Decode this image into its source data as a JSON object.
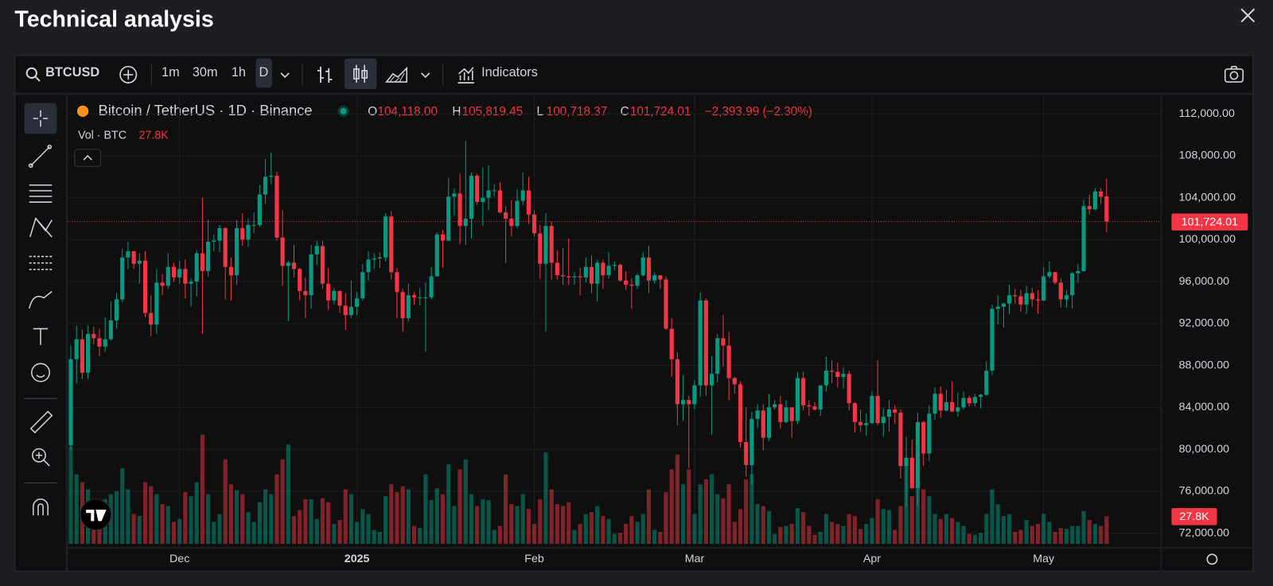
{
  "header": {
    "title": "Technical analysis"
  },
  "toolbar": {
    "symbol": "BTCUSD",
    "intervals": [
      "1m",
      "30m",
      "1h",
      "D"
    ],
    "indicators": "Indicators"
  },
  "chart_data": {
    "type": "candlestick",
    "title": "Bitcoin / TetherUS · 1D · Binance",
    "volume_title": "Vol · BTC",
    "ohlc_keys": [
      "O",
      "H",
      "L",
      "C"
    ],
    "last_labels": {
      "open": "104,118.00",
      "high": "105,819.45",
      "low": "100,718.37",
      "close": "101,724.01",
      "change": "−2,393.99 (−2.30%)"
    },
    "volume_label": "27.8K",
    "up_color": "#089981",
    "down_color": "#f23645",
    "grid": true,
    "ylim": [
      70600,
      113800
    ],
    "yticks": [
      {
        "value": 72000,
        "label": "72,000.00"
      },
      {
        "value": 76000,
        "label": "76,000.00"
      },
      {
        "value": 80000,
        "label": "80,000.00"
      },
      {
        "value": 84000,
        "label": "84,000.00"
      },
      {
        "value": 88000,
        "label": "88,000.00"
      },
      {
        "value": 92000,
        "label": "92,000.00"
      },
      {
        "value": 96000,
        "label": "96,000.00"
      },
      {
        "value": 100000,
        "label": "100,000.00"
      },
      {
        "value": 104000,
        "label": "104,000.00"
      },
      {
        "value": 108000,
        "label": "108,000.00"
      },
      {
        "value": 112000,
        "label": "112,000.00"
      }
    ],
    "xlim": [
      -0.6,
      190.5
    ],
    "xticks": [
      {
        "value": 19,
        "label": "Dec"
      },
      {
        "value": 50,
        "label": "2025"
      },
      {
        "value": 81,
        "label": "Feb"
      },
      {
        "value": 109,
        "label": "Mar"
      },
      {
        "value": 140,
        "label": "Apr"
      },
      {
        "value": 170,
        "label": "May"
      }
    ],
    "vlim": [
      0,
      114500
    ],
    "candles": [
      [
        80400,
        89900,
        80000,
        88600,
        98000
      ],
      [
        88600,
        91800,
        86300,
        90500,
        70000
      ],
      [
        90500,
        91400,
        86700,
        87300,
        62000
      ],
      [
        87300,
        91800,
        86700,
        91000,
        55000
      ],
      [
        91000,
        91700,
        90000,
        90600,
        30000
      ],
      [
        90600,
        91500,
        88900,
        89800,
        32000
      ],
      [
        89800,
        92600,
        89300,
        90500,
        45000
      ],
      [
        90500,
        94100,
        90400,
        92300,
        50000
      ],
      [
        92300,
        94900,
        91500,
        94300,
        53000
      ],
      [
        94300,
        99100,
        94000,
        98300,
        76000
      ],
      [
        98300,
        99800,
        97200,
        98900,
        55000
      ],
      [
        98900,
        98900,
        97200,
        97700,
        30000
      ],
      [
        97700,
        98700,
        95800,
        98000,
        28000
      ],
      [
        98000,
        98900,
        92600,
        93000,
        62000
      ],
      [
        93000,
        94700,
        90800,
        91900,
        58000
      ],
      [
        91900,
        97200,
        91000,
        95900,
        50000
      ],
      [
        95900,
        96700,
        94700,
        95600,
        40000
      ],
      [
        95600,
        98700,
        95300,
        97400,
        38000
      ],
      [
        97400,
        97800,
        96000,
        96400,
        22000
      ],
      [
        96400,
        98000,
        95800,
        97200,
        25000
      ],
      [
        97200,
        98100,
        94400,
        95800,
        52000
      ],
      [
        95800,
        96300,
        93600,
        96000,
        48000
      ],
      [
        96000,
        99000,
        94600,
        98700,
        62000
      ],
      [
        98700,
        104000,
        91000,
        97000,
        110000
      ],
      [
        97000,
        101900,
        96500,
        99800,
        50000
      ],
      [
        99800,
        100500,
        98900,
        99900,
        22000
      ],
      [
        99900,
        101400,
        98800,
        101100,
        30000
      ],
      [
        101100,
        101200,
        94300,
        97400,
        85000
      ],
      [
        97400,
        98300,
        94200,
        96600,
        60000
      ],
      [
        96600,
        101900,
        95700,
        101100,
        54000
      ],
      [
        101100,
        102500,
        99400,
        100000,
        50000
      ],
      [
        100000,
        102000,
        99300,
        101400,
        32000
      ],
      [
        101400,
        102600,
        100600,
        101400,
        22000
      ],
      [
        101400,
        105200,
        101200,
        104300,
        42000
      ],
      [
        104300,
        107700,
        103400,
        106000,
        55000
      ],
      [
        106000,
        108300,
        105300,
        106100,
        50000
      ],
      [
        106100,
        106500,
        99900,
        100200,
        70000
      ],
      [
        100200,
        102800,
        95600,
        97500,
        85000
      ],
      [
        97500,
        98000,
        92200,
        97800,
        100000
      ],
      [
        97800,
        99500,
        96400,
        97200,
        28000
      ],
      [
        97200,
        97300,
        94200,
        95100,
        34000
      ],
      [
        95100,
        96400,
        92500,
        94700,
        45000
      ],
      [
        94700,
        99500,
        93400,
        98600,
        45000
      ],
      [
        98600,
        99900,
        97600,
        99400,
        25000
      ],
      [
        99400,
        99900,
        95300,
        95800,
        46000
      ],
      [
        95800,
        97300,
        93300,
        94200,
        42000
      ],
      [
        94200,
        95400,
        93800,
        95100,
        20000
      ],
      [
        95100,
        95200,
        93000,
        93700,
        24000
      ],
      [
        93700,
        94900,
        91400,
        92800,
        55000
      ],
      [
        92800,
        96100,
        92500,
        93600,
        50000
      ],
      [
        93600,
        95000,
        92800,
        94400,
        22000
      ],
      [
        94400,
        97700,
        94200,
        96900,
        35000
      ],
      [
        96900,
        98900,
        96100,
        98100,
        30000
      ],
      [
        98100,
        98700,
        97200,
        98200,
        14000
      ],
      [
        98200,
        98800,
        97300,
        98300,
        12000
      ],
      [
        98300,
        102500,
        97900,
        102200,
        48000
      ],
      [
        102200,
        102700,
        96200,
        96900,
        60000
      ],
      [
        96900,
        97300,
        92500,
        95000,
        52000
      ],
      [
        95000,
        95300,
        91200,
        92500,
        58000
      ],
      [
        92500,
        95800,
        92200,
        94700,
        55000
      ],
      [
        94700,
        95000,
        93800,
        94500,
        18000
      ],
      [
        94500,
        95400,
        93700,
        94500,
        16000
      ],
      [
        94500,
        95900,
        89300,
        94500,
        70000
      ],
      [
        94500,
        97400,
        94300,
        96500,
        44000
      ],
      [
        96500,
        100700,
        96500,
        100500,
        56000
      ],
      [
        100500,
        100900,
        97300,
        99900,
        50000
      ],
      [
        99900,
        105900,
        99900,
        104100,
        80000
      ],
      [
        104100,
        104900,
        102300,
        104400,
        38000
      ],
      [
        104400,
        106300,
        99600,
        101300,
        75000
      ],
      [
        101300,
        109400,
        99500,
        102000,
        85000
      ],
      [
        102000,
        106400,
        100100,
        106100,
        50000
      ],
      [
        106100,
        106300,
        103300,
        103600,
        38000
      ],
      [
        103600,
        106900,
        101300,
        104000,
        45000
      ],
      [
        104000,
        107100,
        102800,
        104700,
        44000
      ],
      [
        104700,
        105300,
        104100,
        104700,
        14000
      ],
      [
        104700,
        105500,
        102500,
        102600,
        18000
      ],
      [
        102600,
        103200,
        97800,
        102000,
        70000
      ],
      [
        102000,
        103800,
        100300,
        101300,
        40000
      ],
      [
        101300,
        104800,
        101100,
        103700,
        38000
      ],
      [
        103700,
        106400,
        103300,
        104700,
        50000
      ],
      [
        104700,
        106000,
        101500,
        102400,
        35000
      ],
      [
        102400,
        102800,
        100300,
        100600,
        20000
      ],
      [
        100600,
        101400,
        96300,
        97700,
        45000
      ],
      [
        97700,
        102500,
        91200,
        101300,
        92000
      ],
      [
        101300,
        101700,
        96200,
        97800,
        55000
      ],
      [
        97800,
        99000,
        96200,
        96600,
        40000
      ],
      [
        96600,
        99200,
        95700,
        96500,
        38000
      ],
      [
        96500,
        100100,
        95700,
        96400,
        42000
      ],
      [
        96400,
        96900,
        95700,
        96500,
        14000
      ],
      [
        96500,
        97300,
        94700,
        96400,
        20000
      ],
      [
        96400,
        98300,
        95900,
        97400,
        30000
      ],
      [
        97400,
        98500,
        94900,
        95800,
        32000
      ],
      [
        95800,
        98100,
        94100,
        97800,
        38000
      ],
      [
        97800,
        98100,
        95300,
        96600,
        28000
      ],
      [
        96600,
        98800,
        96300,
        97500,
        25000
      ],
      [
        97500,
        97900,
        97100,
        97600,
        10000
      ],
      [
        97600,
        97700,
        96000,
        96100,
        11000
      ],
      [
        96100,
        97000,
        95200,
        95700,
        20000
      ],
      [
        95700,
        96300,
        93400,
        95600,
        28000
      ],
      [
        95600,
        96800,
        95300,
        96600,
        22000
      ],
      [
        96600,
        98800,
        96500,
        98300,
        30000
      ],
      [
        98300,
        99400,
        94900,
        96100,
        55000
      ],
      [
        96100,
        96900,
        95800,
        96600,
        14000
      ],
      [
        96600,
        96600,
        95300,
        96200,
        12000
      ],
      [
        96200,
        96500,
        91400,
        91500,
        52000
      ],
      [
        91500,
        92500,
        86900,
        88600,
        75000
      ],
      [
        88600,
        89300,
        82300,
        84300,
        90000
      ],
      [
        84300,
        87100,
        82700,
        84700,
        60000
      ],
      [
        84700,
        85100,
        78200,
        84300,
        75000
      ],
      [
        84300,
        86600,
        83800,
        86100,
        30000
      ],
      [
        86100,
        95000,
        85000,
        94200,
        60000
      ],
      [
        94200,
        94400,
        85100,
        86100,
        65000
      ],
      [
        86100,
        88900,
        81400,
        87200,
        70000
      ],
      [
        87200,
        91000,
        86400,
        90600,
        50000
      ],
      [
        90600,
        92800,
        87900,
        89900,
        46000
      ],
      [
        89900,
        91200,
        84700,
        86800,
        60000
      ],
      [
        86800,
        86900,
        85300,
        86200,
        22000
      ],
      [
        86200,
        86500,
        80200,
        80700,
        35000
      ],
      [
        80700,
        84000,
        77400,
        78500,
        65000
      ],
      [
        78500,
        83600,
        76600,
        82900,
        70000
      ],
      [
        82900,
        84300,
        82000,
        83700,
        40000
      ],
      [
        83700,
        84300,
        79900,
        81100,
        38000
      ],
      [
        81100,
        85300,
        80800,
        84000,
        33000
      ],
      [
        84000,
        84700,
        83800,
        84300,
        10000
      ],
      [
        84300,
        85100,
        82000,
        82600,
        17000
      ],
      [
        82600,
        84700,
        82500,
        84000,
        18000
      ],
      [
        84000,
        84000,
        81100,
        82700,
        20000
      ],
      [
        82700,
        87400,
        82400,
        86800,
        36000
      ],
      [
        86800,
        87400,
        83700,
        84200,
        32000
      ],
      [
        84200,
        84700,
        83200,
        84100,
        18000
      ],
      [
        84100,
        84500,
        83700,
        83800,
        9000
      ],
      [
        83800,
        86100,
        83200,
        86100,
        12000
      ],
      [
        86100,
        88800,
        85500,
        87500,
        30000
      ],
      [
        87500,
        88500,
        86300,
        87400,
        22000
      ],
      [
        87400,
        88300,
        85900,
        86900,
        20000
      ],
      [
        86900,
        87800,
        85800,
        87200,
        18000
      ],
      [
        87200,
        87500,
        83700,
        84400,
        30000
      ],
      [
        84400,
        84500,
        81600,
        82600,
        28000
      ],
      [
        82600,
        83800,
        81700,
        82300,
        15000
      ],
      [
        82300,
        83400,
        81300,
        82500,
        20000
      ],
      [
        82500,
        85500,
        82400,
        85100,
        26000
      ],
      [
        85100,
        88500,
        82300,
        82500,
        45000
      ],
      [
        82500,
        83900,
        81200,
        83100,
        35000
      ],
      [
        83100,
        84700,
        81700,
        83800,
        34000
      ],
      [
        83800,
        84200,
        82400,
        83500,
        14000
      ],
      [
        83500,
        83800,
        77200,
        78400,
        38000
      ],
      [
        78400,
        81200,
        74500,
        79200,
        80000
      ],
      [
        79200,
        80900,
        76200,
        76300,
        48000
      ],
      [
        76300,
        83500,
        74600,
        82600,
        80000
      ],
      [
        82600,
        82700,
        78400,
        79600,
        55000
      ],
      [
        79600,
        84200,
        78900,
        83400,
        48000
      ],
      [
        83400,
        85900,
        82800,
        85300,
        30000
      ],
      [
        85300,
        86000,
        83000,
        83700,
        25000
      ],
      [
        83700,
        85700,
        83600,
        84500,
        30000
      ],
      [
        84500,
        86500,
        83600,
        83600,
        26000
      ],
      [
        83600,
        85400,
        83100,
        84000,
        22000
      ],
      [
        84000,
        85500,
        83800,
        84900,
        18000
      ],
      [
        84900,
        85100,
        84100,
        84400,
        10000
      ],
      [
        84400,
        85300,
        84100,
        85000,
        9000
      ],
      [
        85000,
        85300,
        83900,
        85200,
        11000
      ],
      [
        85200,
        88400,
        85100,
        87500,
        30000
      ],
      [
        87500,
        93800,
        87100,
        93400,
        55000
      ],
      [
        93400,
        94700,
        91900,
        93600,
        40000
      ],
      [
        93600,
        94000,
        91600,
        93900,
        28000
      ],
      [
        93900,
        95700,
        92900,
        94700,
        30000
      ],
      [
        94700,
        95300,
        93900,
        94600,
        12000
      ],
      [
        94600,
        95200,
        93100,
        93800,
        14000
      ],
      [
        93800,
        95600,
        92900,
        94900,
        24000
      ],
      [
        94900,
        95400,
        93600,
        94300,
        18000
      ],
      [
        94300,
        95200,
        92900,
        94200,
        20000
      ],
      [
        94200,
        97400,
        94100,
        96500,
        30000
      ],
      [
        96500,
        97900,
        96300,
        96900,
        22000
      ],
      [
        96900,
        96900,
        95700,
        95900,
        12000
      ],
      [
        95900,
        96300,
        93500,
        94300,
        16000
      ],
      [
        94300,
        95200,
        93500,
        94700,
        15000
      ],
      [
        94700,
        96900,
        93400,
        96800,
        18000
      ],
      [
        96800,
        97700,
        95900,
        97000,
        18000
      ],
      [
        97000,
        103800,
        96900,
        103200,
        33000
      ],
      [
        103200,
        104300,
        102400,
        102900,
        24000
      ],
      [
        102900,
        104900,
        102800,
        104600,
        20000
      ],
      [
        104600,
        104900,
        103400,
        104100,
        18000
      ],
      [
        104118,
        105819.45,
        100718.37,
        101724.01,
        27800
      ]
    ]
  }
}
